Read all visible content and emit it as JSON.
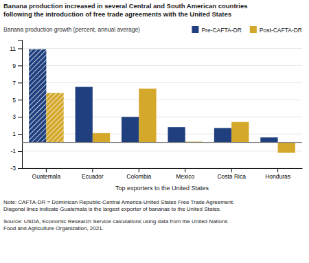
{
  "chart_data": {
    "type": "bar",
    "title": "Banana production increased in several Central and South American countries\nfollowing the introduction of free trade agreements with the United States",
    "ylabel": "Banana production growth (percent, annual average)",
    "xlabel": "Top exporters to the United States",
    "categories": [
      "Guatemala",
      "Ecuador",
      "Colombia",
      "Mexico",
      "Costa Rica",
      "Honduras"
    ],
    "series": [
      {
        "name": "Pre-CAFTA-DR",
        "color": "#1F3F7F",
        "values": [
          10.9,
          6.5,
          3.0,
          1.8,
          1.7,
          0.6
        ]
      },
      {
        "name": "Post-CAFTA-DR",
        "color": "#D4A82A",
        "values": [
          5.8,
          1.1,
          6.3,
          0.1,
          2.4,
          -1.2
        ]
      }
    ],
    "ylim": [
      -3,
      12
    ],
    "yticks": [
      -3,
      -1,
      1,
      3,
      5,
      7,
      9,
      11
    ],
    "grid": true,
    "legend": "upper right",
    "annotations": [
      "Note: CAFTA-DR = Dominican Republic-Central America-United States Free Trade Agreement.\nDiagonal lines indicate Guatemala is the largest exporter of bananas to the United States.",
      "Source: USDA, Economic Research Service calculations using data from the United Nations\nFood and Agriculture Organization, 2021."
    ]
  }
}
